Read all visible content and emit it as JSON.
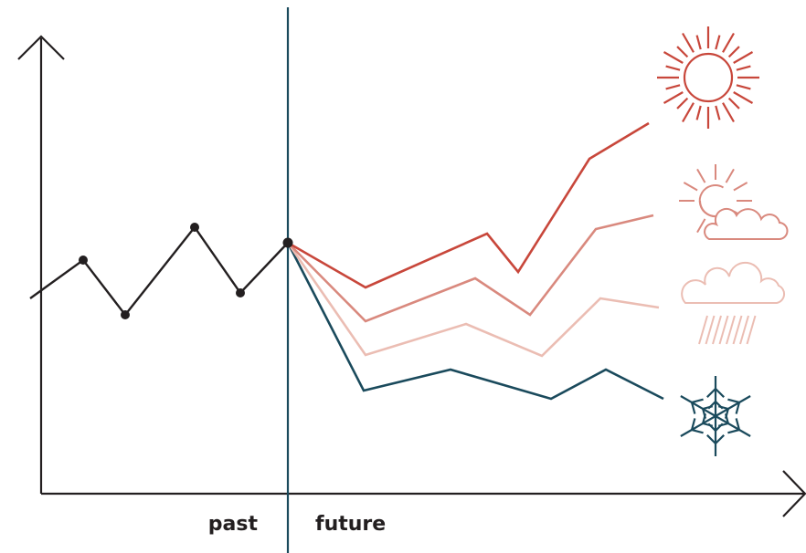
{
  "labels": {
    "past": "past",
    "future": "future"
  },
  "colors": {
    "axis": "#231f20",
    "divider": "#1a4a5c",
    "history": "#231f20",
    "sunny": "#c8473b",
    "partly_cloudy": "#d9897e",
    "rainy": "#ebbdb3",
    "snowy": "#1a4a5c"
  },
  "icons": {
    "sunny": "sun-icon",
    "partly_cloudy": "sun-behind-cloud-icon",
    "rainy": "rain-cloud-icon",
    "snowy": "snowflake-icon"
  },
  "scenarios": [
    "sunny",
    "partly_cloudy",
    "rainy",
    "snowy"
  ]
}
